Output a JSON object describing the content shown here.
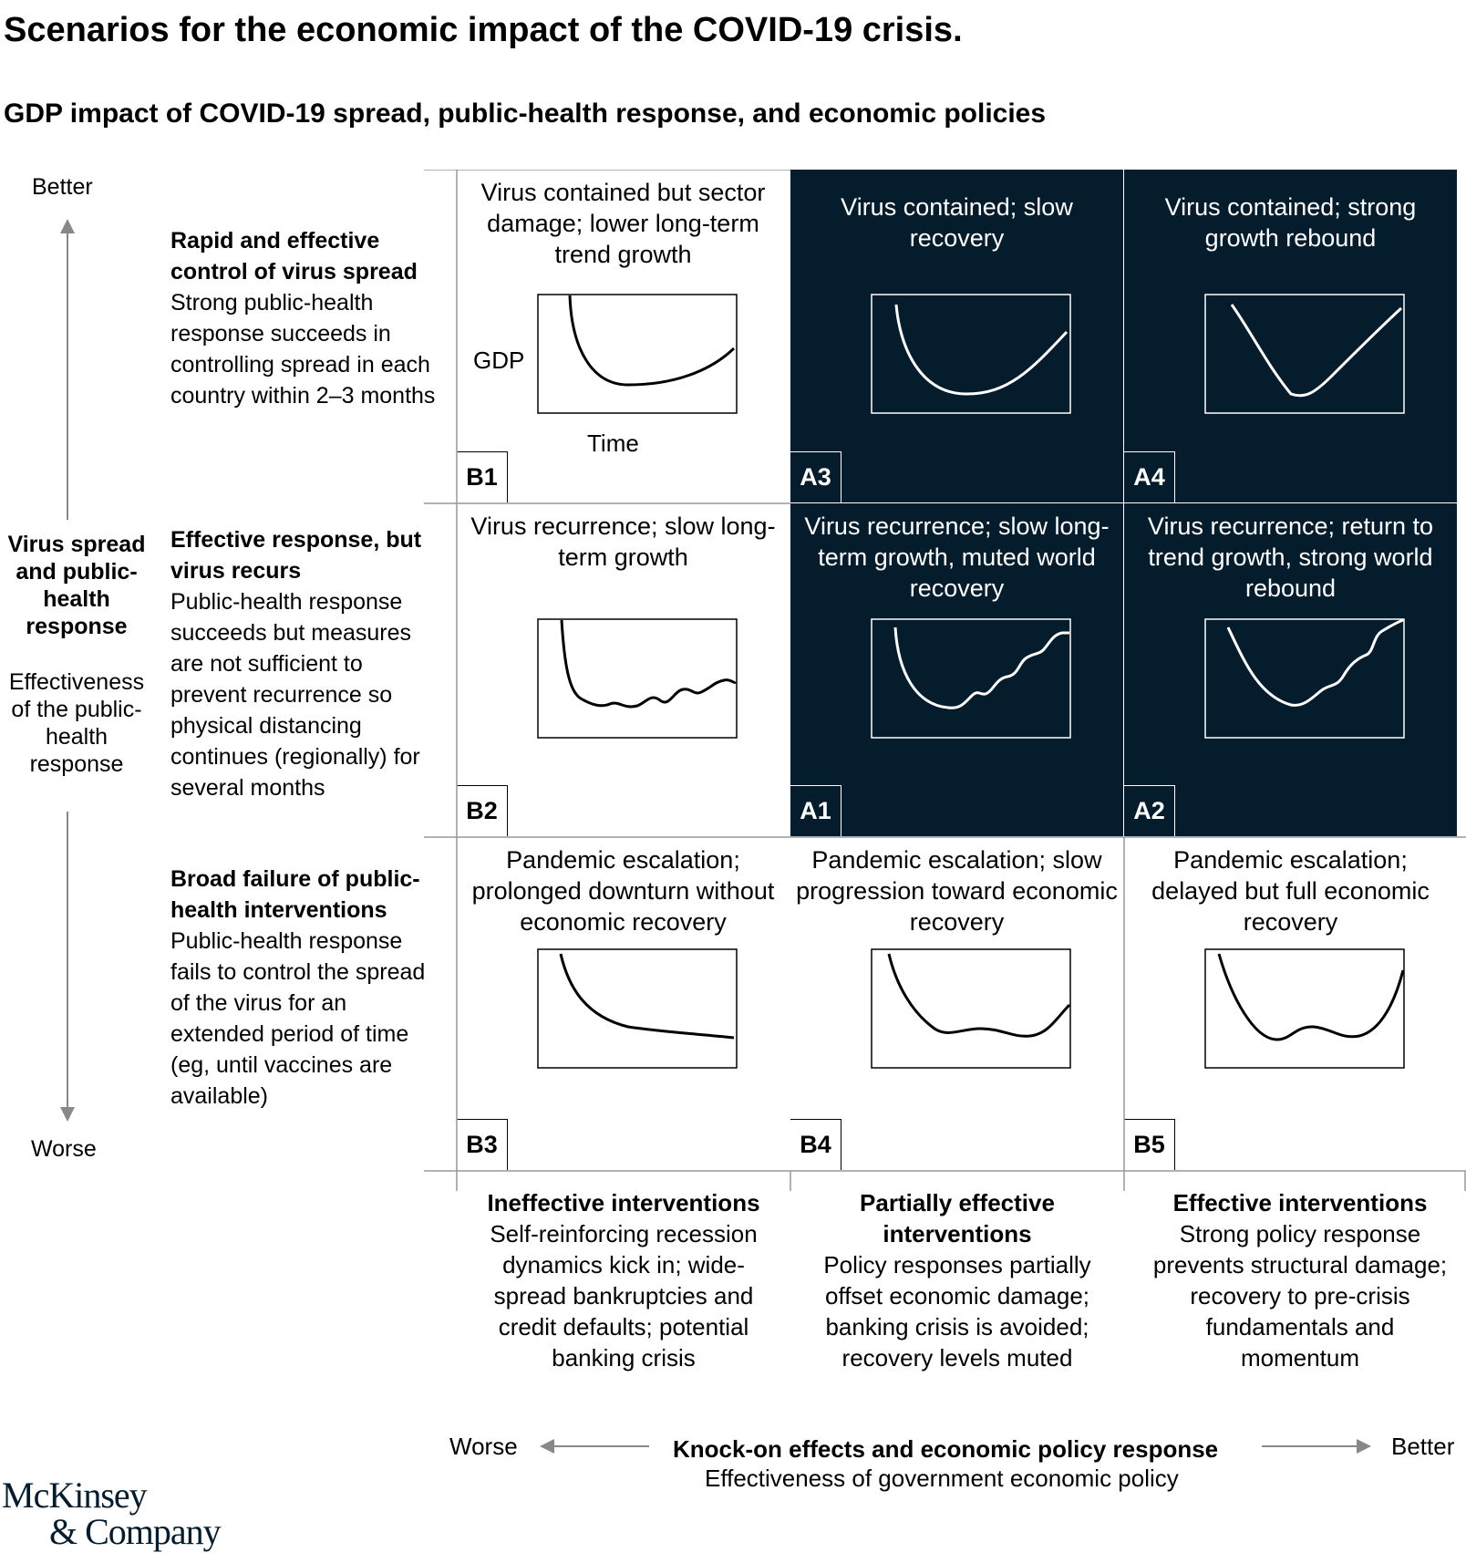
{
  "title": "Scenarios for the economic impact of the COVID-19 crisis.",
  "subtitle": "GDP impact of COVID-19 spread, public-health response, and economic policies",
  "y_axis": {
    "better": "Better",
    "worse": "Worse",
    "label_head": "Virus spread and public-health response",
    "label_sub": "Effectiveness of the public-health response"
  },
  "rows": [
    {
      "head": "Rapid and effective control of virus spread",
      "body": "Strong public-health response succeeds in controlling spread in each country within 2–3 months"
    },
    {
      "head": "Effective response, but virus recurs",
      "body": "Public-health response succeeds but measures are not sufficient to prevent recurrence so physical distancing continues (regionally) for several months"
    },
    {
      "head": "Broad failure of public-health interventions",
      "body": "Public-health response fails to control the spread of the virus for an extended period of time (eg, until vaccines are available)"
    }
  ],
  "cells": [
    {
      "code": "B1",
      "title": "Virus contained but sector damage; lower long-term trend growth",
      "theme": "light"
    },
    {
      "code": "A3",
      "title": "Virus contained; slow recovery",
      "theme": "dark"
    },
    {
      "code": "A4",
      "title": "Virus contained; strong growth rebound",
      "theme": "dark"
    },
    {
      "code": "B2",
      "title": "Virus recurrence; slow long-term growth",
      "theme": "light"
    },
    {
      "code": "A1",
      "title": "Virus recurrence; slow long-term growth, muted world recovery",
      "theme": "dark"
    },
    {
      "code": "A2",
      "title": "Virus recurrence; return to trend growth, strong world rebound",
      "theme": "dark"
    },
    {
      "code": "B3",
      "title": "Pandemic escalation; prolonged downturn without economic recovery",
      "theme": "light"
    },
    {
      "code": "B4",
      "title": "Pandemic escalation; slow progression toward economic recovery",
      "theme": "light"
    },
    {
      "code": "B5",
      "title": "Pandemic escalation; delayed but full economic recovery",
      "theme": "light"
    }
  ],
  "plot_labels": {
    "gdp": "GDP",
    "time": "Time"
  },
  "columns": [
    {
      "head": "Ineffective interventions",
      "body": "Self-reinforcing recession dynamics kick in; wide-spread bankruptcies and credit defaults; potential banking crisis"
    },
    {
      "head": "Partially effective interventions",
      "body": "Policy responses partially offset economic damage; banking crisis is avoided; recovery levels muted"
    },
    {
      "head": "Effective interventions",
      "body": "Strong policy response prevents structural damage; recovery to pre-crisis fundamentals and momentum"
    }
  ],
  "x_axis": {
    "worse": "Worse",
    "better": "Better",
    "label_head": "Knock-on effects and economic policy response",
    "label_sub": "Effectiveness of government economic policy"
  },
  "logo": {
    "line1": "McKinsey",
    "line2": "& Company"
  },
  "colors": {
    "dark_cell": "#051c2c",
    "arrow": "#888888",
    "divider": "#999999"
  }
}
